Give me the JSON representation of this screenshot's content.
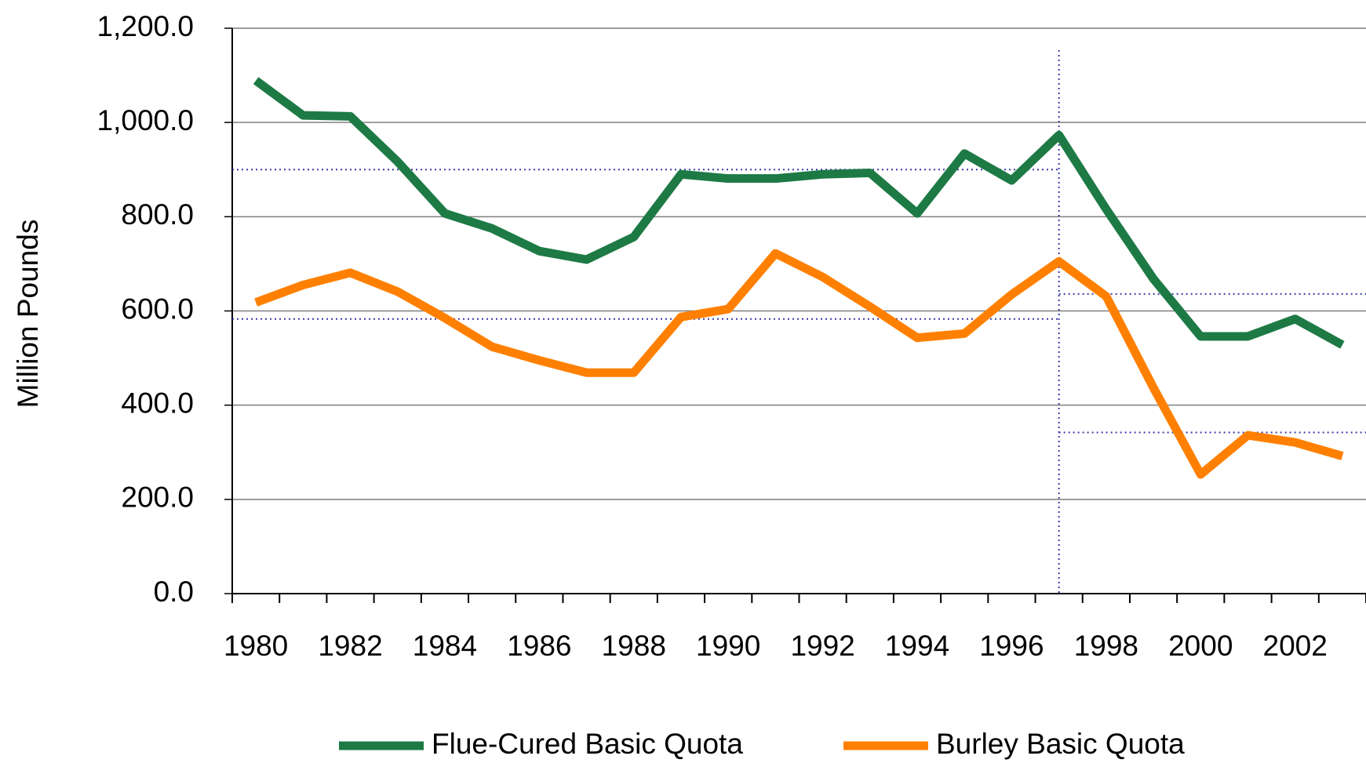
{
  "chart_data": {
    "type": "line",
    "y_label": "Million Pounds",
    "categories": [
      "1980",
      null,
      "1982",
      null,
      "1984",
      null,
      "1986",
      null,
      "1988",
      null,
      "1990",
      null,
      "1992",
      null,
      "1994",
      null,
      "1996",
      null,
      "1998",
      null,
      "2000",
      null,
      "2002",
      null
    ],
    "series": [
      {
        "name": "Flue-Cured Basic Quota",
        "color": "#1e7a45",
        "values": [
          1089,
          1015,
          1013,
          917,
          807,
          775,
          727,
          709,
          757,
          890,
          881,
          881,
          890,
          893,
          807,
          934,
          877,
          973,
          816,
          668,
          546,
          546,
          583,
          528
        ]
      },
      {
        "name": "Burley Basic Quota",
        "color": "#ff8000",
        "values": [
          618,
          655,
          681,
          641,
          585,
          524,
          495,
          469,
          469,
          587,
          604,
          722,
          672,
          609,
          543,
          552,
          635,
          705,
          631,
          437,
          253,
          336,
          321,
          292
        ]
      }
    ],
    "reference": {
      "split": 17,
      "before": [
        900,
        583
      ],
      "after": [
        636,
        342
      ],
      "color": "#3a3aa8"
    },
    "ylim": [
      0,
      1200
    ],
    "yticks": [
      {
        "value": 0,
        "label": "0.0"
      },
      {
        "value": 200,
        "label": "200.0"
      },
      {
        "value": 400,
        "label": "400.0"
      },
      {
        "value": 600,
        "label": "600.0"
      },
      {
        "value": 800,
        "label": "800.0"
      },
      {
        "value": 1000,
        "label": "1,000.0"
      },
      {
        "value": 1200,
        "label": "1,200.0"
      }
    ],
    "grid": true,
    "legend": "bottom"
  }
}
